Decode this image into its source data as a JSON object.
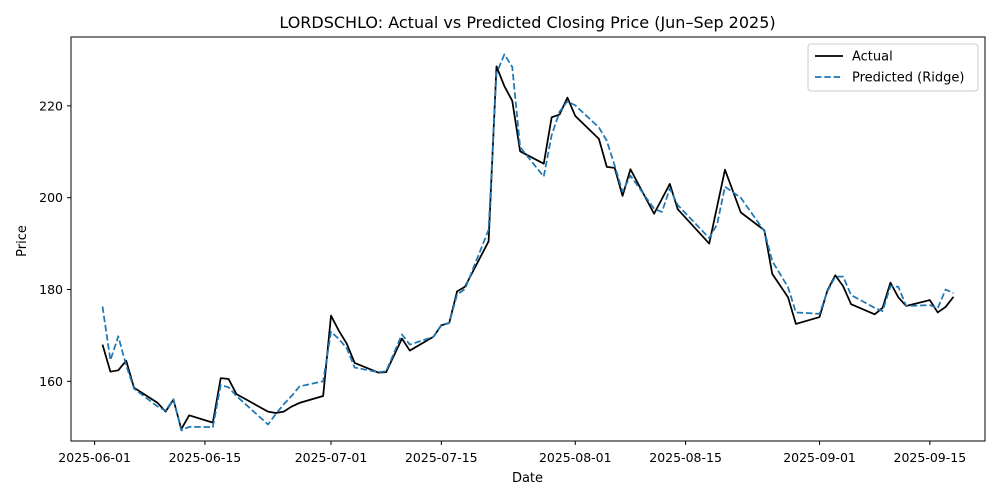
{
  "chart_data": {
    "type": "line",
    "title": "LORDSCHLO: Actual vs Predicted Closing Price (Jun–Sep 2025)",
    "xlabel": "Date",
    "ylabel": "Price",
    "xlim": [
      "2025-05-29",
      "2025-09-22"
    ],
    "ylim": [
      147,
      235
    ],
    "xticks": [
      "2025-06-01",
      "2025-06-15",
      "2025-07-01",
      "2025-07-15",
      "2025-08-01",
      "2025-08-15",
      "2025-09-01",
      "2025-09-15"
    ],
    "yticks": [
      160,
      180,
      200,
      220
    ],
    "grid": false,
    "legend_position": "top-right",
    "colors": {
      "Actual": "#000000",
      "Predicted (Ridge)": "#1f77b4"
    },
    "series": [
      {
        "name": "Actual",
        "style": "solid",
        "points": [
          [
            "2025-06-02",
            168.0
          ],
          [
            "2025-06-03",
            162.1
          ],
          [
            "2025-06-04",
            162.4
          ],
          [
            "2025-06-05",
            164.5
          ],
          [
            "2025-06-06",
            158.6
          ],
          [
            "2025-06-09",
            155.3
          ],
          [
            "2025-06-10",
            153.4
          ],
          [
            "2025-06-11",
            156.0
          ],
          [
            "2025-06-12",
            149.6
          ],
          [
            "2025-06-13",
            152.6
          ],
          [
            "2025-06-16",
            151.0
          ],
          [
            "2025-06-17",
            160.7
          ],
          [
            "2025-06-18",
            160.5
          ],
          [
            "2025-06-19",
            157.2
          ],
          [
            "2025-06-23",
            153.4
          ],
          [
            "2025-06-24",
            153.1
          ],
          [
            "2025-06-25",
            153.4
          ],
          [
            "2025-06-26",
            154.5
          ],
          [
            "2025-06-27",
            155.3
          ],
          [
            "2025-06-30",
            156.8
          ],
          [
            "2025-07-01",
            174.3
          ],
          [
            "2025-07-02",
            171.0
          ],
          [
            "2025-07-03",
            168.2
          ],
          [
            "2025-07-04",
            164.0
          ],
          [
            "2025-07-07",
            161.9
          ],
          [
            "2025-07-08",
            162.0
          ],
          [
            "2025-07-10",
            169.3
          ],
          [
            "2025-07-11",
            166.7
          ],
          [
            "2025-07-14",
            169.7
          ],
          [
            "2025-07-15",
            172.2
          ],
          [
            "2025-07-16",
            172.7
          ],
          [
            "2025-07-17",
            179.6
          ],
          [
            "2025-07-18",
            180.6
          ],
          [
            "2025-07-21",
            190.5
          ],
          [
            "2025-07-22",
            228.6
          ],
          [
            "2025-07-23",
            224.3
          ],
          [
            "2025-07-24",
            221.1
          ],
          [
            "2025-07-25",
            210.1
          ],
          [
            "2025-07-28",
            207.4
          ],
          [
            "2025-07-29",
            217.5
          ],
          [
            "2025-07-30",
            218.1
          ],
          [
            "2025-07-31",
            221.8
          ],
          [
            "2025-08-01",
            217.8
          ],
          [
            "2025-08-04",
            212.8
          ],
          [
            "2025-08-05",
            206.7
          ],
          [
            "2025-08-06",
            206.5
          ],
          [
            "2025-08-07",
            200.4
          ],
          [
            "2025-08-08",
            206.2
          ],
          [
            "2025-08-11",
            196.5
          ],
          [
            "2025-08-13",
            203.0
          ],
          [
            "2025-08-14",
            197.5
          ],
          [
            "2025-08-18",
            190.0
          ],
          [
            "2025-08-20",
            206.1
          ],
          [
            "2025-08-22",
            196.8
          ],
          [
            "2025-08-25",
            192.9
          ],
          [
            "2025-08-26",
            183.4
          ],
          [
            "2025-08-28",
            178.3
          ],
          [
            "2025-08-29",
            172.5
          ],
          [
            "2025-09-01",
            174.0
          ],
          [
            "2025-09-02",
            179.8
          ],
          [
            "2025-09-03",
            183.1
          ],
          [
            "2025-09-04",
            180.7
          ],
          [
            "2025-09-05",
            176.8
          ],
          [
            "2025-09-08",
            174.6
          ],
          [
            "2025-09-09",
            176.0
          ],
          [
            "2025-09-10",
            181.5
          ],
          [
            "2025-09-11",
            178.3
          ],
          [
            "2025-09-12",
            176.4
          ],
          [
            "2025-09-15",
            177.7
          ],
          [
            "2025-09-16",
            175.0
          ],
          [
            "2025-09-17",
            176.2
          ],
          [
            "2025-09-18",
            178.4
          ]
        ]
      },
      {
        "name": "Predicted (Ridge)",
        "style": "dashed",
        "points": [
          [
            "2025-06-02",
            176.3
          ],
          [
            "2025-06-03",
            164.6
          ],
          [
            "2025-06-04",
            169.8
          ],
          [
            "2025-06-05",
            163.5
          ],
          [
            "2025-06-06",
            158.4
          ],
          [
            "2025-06-09",
            154.5
          ],
          [
            "2025-06-10",
            153.6
          ],
          [
            "2025-06-11",
            156.1
          ],
          [
            "2025-06-12",
            149.3
          ],
          [
            "2025-06-13",
            150.1
          ],
          [
            "2025-06-16",
            150.0
          ],
          [
            "2025-06-17",
            159.2
          ],
          [
            "2025-06-18",
            158.7
          ],
          [
            "2025-06-19",
            156.8
          ],
          [
            "2025-06-23",
            150.6
          ],
          [
            "2025-06-24",
            152.9
          ],
          [
            "2025-06-25",
            155.0
          ],
          [
            "2025-06-26",
            156.8
          ],
          [
            "2025-06-27",
            158.9
          ],
          [
            "2025-06-30",
            160.0
          ],
          [
            "2025-07-01",
            170.8
          ],
          [
            "2025-07-02",
            169.2
          ],
          [
            "2025-07-03",
            167.2
          ],
          [
            "2025-07-04",
            163.0
          ],
          [
            "2025-07-07",
            162.0
          ],
          [
            "2025-07-08",
            162.2
          ],
          [
            "2025-07-10",
            170.2
          ],
          [
            "2025-07-11",
            168.0
          ],
          [
            "2025-07-14",
            169.7
          ],
          [
            "2025-07-15",
            172.3
          ],
          [
            "2025-07-16",
            172.7
          ],
          [
            "2025-07-17",
            178.9
          ],
          [
            "2025-07-18",
            180.1
          ],
          [
            "2025-07-21",
            193.0
          ],
          [
            "2025-07-22",
            227.1
          ],
          [
            "2025-07-23",
            231.2
          ],
          [
            "2025-07-24",
            228.5
          ],
          [
            "2025-07-25",
            211.0
          ],
          [
            "2025-07-28",
            204.6
          ],
          [
            "2025-07-29",
            213.6
          ],
          [
            "2025-07-30",
            218.7
          ],
          [
            "2025-07-31",
            221.0
          ],
          [
            "2025-08-01",
            220.1
          ],
          [
            "2025-08-04",
            215.3
          ],
          [
            "2025-08-05",
            212.4
          ],
          [
            "2025-08-06",
            207.0
          ],
          [
            "2025-08-07",
            201.3
          ],
          [
            "2025-08-08",
            204.8
          ],
          [
            "2025-08-11",
            197.6
          ],
          [
            "2025-08-12",
            196.9
          ],
          [
            "2025-08-13",
            202.0
          ],
          [
            "2025-08-14",
            198.4
          ],
          [
            "2025-08-18",
            191.2
          ],
          [
            "2025-08-19",
            194.2
          ],
          [
            "2025-08-20",
            202.4
          ],
          [
            "2025-08-22",
            200.0
          ],
          [
            "2025-08-25",
            192.7
          ],
          [
            "2025-08-26",
            186.2
          ],
          [
            "2025-08-28",
            180.5
          ],
          [
            "2025-08-29",
            175.0
          ],
          [
            "2025-09-01",
            174.7
          ],
          [
            "2025-09-02",
            179.6
          ],
          [
            "2025-09-03",
            182.8
          ],
          [
            "2025-09-04",
            182.8
          ],
          [
            "2025-09-05",
            178.8
          ],
          [
            "2025-09-08",
            176.0
          ],
          [
            "2025-09-09",
            175.3
          ],
          [
            "2025-09-10",
            180.7
          ],
          [
            "2025-09-11",
            180.6
          ],
          [
            "2025-09-12",
            176.4
          ],
          [
            "2025-09-15",
            176.6
          ],
          [
            "2025-09-16",
            175.9
          ],
          [
            "2025-09-17",
            180.0
          ],
          [
            "2025-09-18",
            179.2
          ]
        ]
      }
    ]
  }
}
